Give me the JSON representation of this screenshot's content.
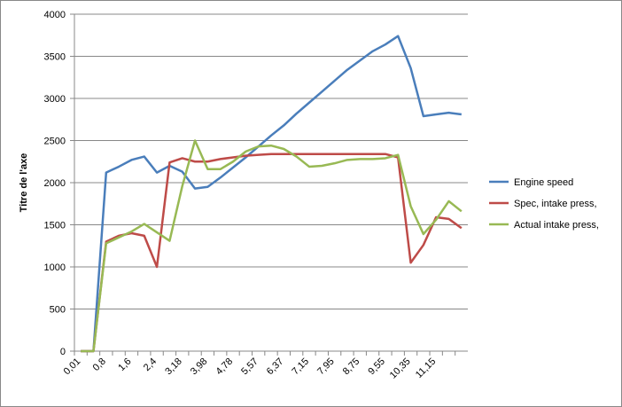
{
  "chart_data": {
    "type": "line",
    "y_axis_label": "Titre de l'axe",
    "categories": [
      "0,01",
      null,
      "0,8",
      null,
      "1,6",
      null,
      "2,4",
      null,
      "3,18",
      null,
      "3,98",
      null,
      "4,78",
      null,
      "5,57",
      null,
      "6,37",
      null,
      "7,15",
      null,
      "7,95",
      null,
      "8,75",
      null,
      "9,55",
      null,
      "10,35",
      null,
      "11,15",
      null,
      null
    ],
    "series": [
      {
        "name": "Engine speed",
        "color": "#4a7ebb",
        "values": [
          0,
          0,
          2120,
          2190,
          2270,
          2310,
          2120,
          2200,
          2130,
          1930,
          1950,
          2060,
          2180,
          2300,
          2430,
          2560,
          2680,
          2820,
          2950,
          3080,
          3210,
          3340,
          3450,
          3560,
          3640,
          3740,
          3360,
          2790,
          2810,
          2830,
          2810
        ]
      },
      {
        "name": "Spec, intake press,",
        "color": "#be4b48",
        "values": [
          0,
          0,
          1300,
          1370,
          1400,
          1370,
          1000,
          2240,
          2290,
          2250,
          2250,
          2280,
          2300,
          2320,
          2330,
          2340,
          2340,
          2340,
          2340,
          2340,
          2340,
          2340,
          2340,
          2340,
          2340,
          2300,
          1050,
          1260,
          1590,
          1570,
          1460
        ]
      },
      {
        "name": "Actual intake press,",
        "color": "#98b954",
        "values": [
          0,
          0,
          1280,
          1350,
          1420,
          1510,
          1410,
          1310,
          1960,
          2500,
          2160,
          2160,
          2250,
          2370,
          2430,
          2440,
          2400,
          2310,
          2190,
          2200,
          2230,
          2270,
          2280,
          2280,
          2290,
          2330,
          1720,
          1390,
          1560,
          1780,
          1660
        ]
      }
    ],
    "ylim": [
      0,
      4000
    ],
    "yticks": [
      0,
      500,
      1000,
      1500,
      2000,
      2500,
      3000,
      3500,
      4000
    ],
    "grid": true,
    "legend": "right"
  }
}
